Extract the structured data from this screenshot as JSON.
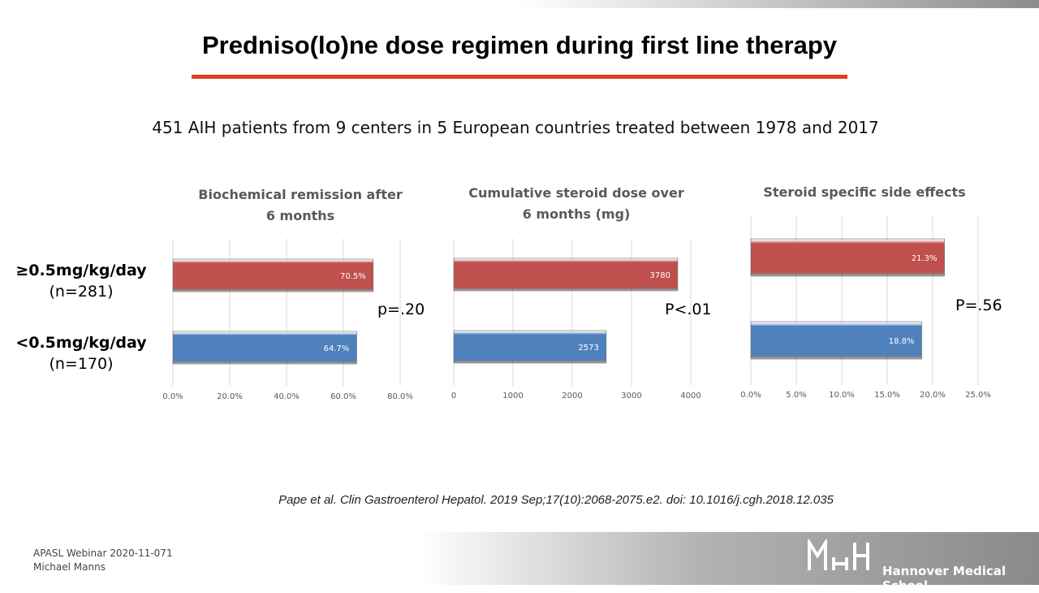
{
  "title": "Predniso(lo)ne dose regimen during first line therapy",
  "subtitle": "451 AIH patients from 9 centers in 5 European countries treated between 1978 and 2017",
  "groups": [
    {
      "label": "≥0.5mg/kg/day",
      "n": "(n=281)"
    },
    {
      "label": "<0.5mg/kg/day",
      "n": "(n=170)"
    }
  ],
  "colors": {
    "high_dose": "#c0504d",
    "low_dose": "#4f81bd",
    "rule": "#e0401e"
  },
  "chart_data": [
    {
      "type": "bar",
      "orientation": "horizontal",
      "title": "Biochemical remission after\n6 months",
      "categories": [
        "≥0.5mg/kg/day (n=281)",
        "<0.5mg/kg/day (n=170)"
      ],
      "values": [
        70.5,
        64.7
      ],
      "data_labels": [
        "70.5%",
        "64.7%"
      ],
      "xlim": [
        0,
        80
      ],
      "ticks": [
        "0.0%",
        "20.0%",
        "40.0%",
        "60.0%",
        "80.0%"
      ],
      "p_value": "p=.20",
      "grid": true
    },
    {
      "type": "bar",
      "orientation": "horizontal",
      "title": "Cumulative steroid dose over\n6 months (mg)",
      "categories": [
        "≥0.5mg/kg/day (n=281)",
        "<0.5mg/kg/day (n=170)"
      ],
      "values": [
        3780,
        2573
      ],
      "data_labels": [
        "3780",
        "2573"
      ],
      "xlim": [
        0,
        4000
      ],
      "ticks": [
        "0",
        "1000",
        "2000",
        "3000",
        "4000"
      ],
      "p_value": "P<.01",
      "grid": true
    },
    {
      "type": "bar",
      "orientation": "horizontal",
      "title": "Steroid specific side effects",
      "categories": [
        "≥0.5mg/kg/day (n=281)",
        "<0.5mg/kg/day (n=170)"
      ],
      "values": [
        21.3,
        18.8
      ],
      "data_labels": [
        "21.3%",
        "18.8%"
      ],
      "xlim": [
        0,
        25
      ],
      "ticks": [
        "0.0%",
        "5.0%",
        "10.0%",
        "15.0%",
        "20.0%",
        "25.0%"
      ],
      "p_value": "P=.56",
      "grid": true
    }
  ],
  "citation": "Pape et al. Clin Gastroenterol Hepatol. 2019 Sep;17(10):2068-2075.e2. doi: 10.1016/j.cgh.2018.12.035",
  "footer": {
    "line1": "APASL Webinar 2020-11-071",
    "line2": "Michael Manns"
  },
  "logo": {
    "mark": "MHH",
    "text": "Hannover Medical School"
  }
}
